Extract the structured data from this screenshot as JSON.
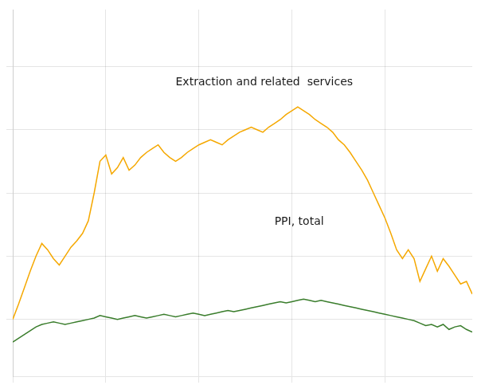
{
  "chart_data": {
    "type": "line",
    "x": [
      0,
      1,
      2,
      3,
      4,
      5,
      6,
      7,
      8,
      9,
      10,
      11,
      12,
      13,
      14,
      15,
      16,
      17,
      18,
      19,
      20,
      21,
      22,
      23,
      24,
      25,
      26,
      27,
      28,
      29,
      30,
      31,
      32,
      33,
      34,
      35,
      36,
      37,
      38,
      39,
      40,
      41,
      42,
      43,
      44,
      45,
      46,
      47,
      48,
      49,
      50,
      51,
      52,
      53,
      54,
      55,
      56,
      57,
      58,
      59,
      60,
      61,
      62,
      63,
      64,
      65,
      66,
      67,
      68,
      69,
      70,
      71,
      72,
      73,
      74,
      75,
      76,
      77,
      78,
      79
    ],
    "series": [
      {
        "color": "#f5a800",
        "values": [
          100,
          112,
          125,
          138,
          150,
          160,
          155,
          148,
          143,
          150,
          157,
          162,
          168,
          178,
          200,
          225,
          230,
          215,
          220,
          228,
          218,
          222,
          228,
          232,
          235,
          238,
          232,
          228,
          225,
          228,
          232,
          235,
          238,
          240,
          242,
          240,
          238,
          242,
          245,
          248,
          250,
          252,
          250,
          248,
          252,
          255,
          258,
          262,
          265,
          268,
          265,
          262,
          258,
          255,
          252,
          248,
          242,
          238,
          232,
          225,
          218,
          210,
          200,
          190,
          180,
          168,
          155,
          148,
          155,
          148,
          130,
          140,
          150,
          138,
          148,
          142,
          135,
          128,
          130,
          120
        ]
      },
      {
        "color": "#3a7d2c",
        "values": [
          82,
          85,
          88,
          91,
          94,
          96,
          97,
          98,
          97,
          96,
          97,
          98,
          99,
          100,
          101,
          103,
          102,
          101,
          100,
          101,
          102,
          103,
          102,
          101,
          102,
          103,
          104,
          103,
          102,
          103,
          104,
          105,
          104,
          103,
          104,
          105,
          106,
          107,
          106,
          107,
          108,
          109,
          110,
          111,
          112,
          113,
          114,
          113,
          114,
          115,
          116,
          115,
          114,
          115,
          114,
          113,
          112,
          111,
          110,
          109,
          108,
          107,
          106,
          105,
          104,
          103,
          102,
          101,
          100,
          99,
          97,
          95,
          96,
          94,
          96,
          92,
          94,
          95,
          92,
          90
        ]
      }
    ],
    "annotations": [
      {
        "text": "Extraction and related  services",
        "x": 28,
        "y": 285
      },
      {
        "text": "PPI, total",
        "x": 45,
        "y": 175
      }
    ],
    "xlim": [
      0,
      79
    ],
    "xticks": [
      0,
      16,
      32,
      48,
      64
    ],
    "ylim": [
      55,
      345
    ],
    "yticks": [
      100,
      150,
      200,
      250,
      300
    ],
    "grid": true,
    "tick_labels": false
  }
}
